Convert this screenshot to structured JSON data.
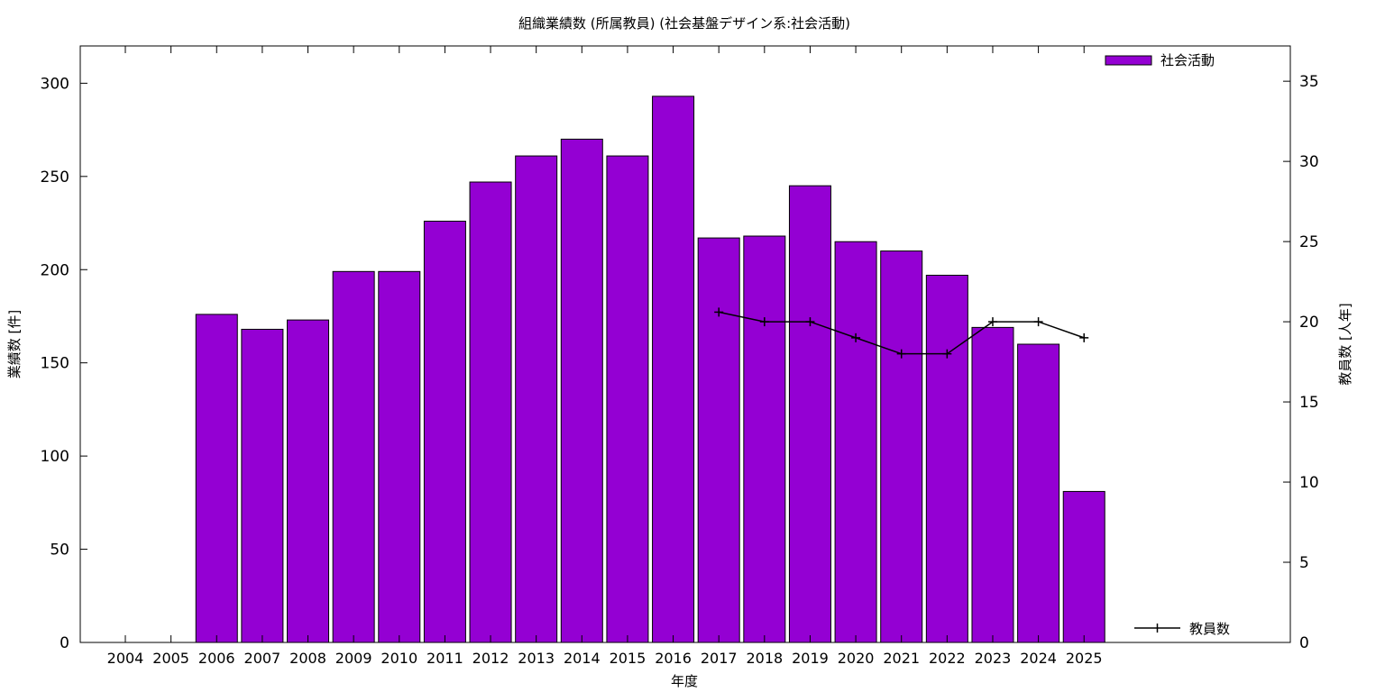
{
  "chart_data": {
    "type": "bar",
    "title": "組織業績数 (所属教員) (社会基盤デザイン系:社会活動)",
    "xlabel": "年度",
    "ylabel": "業績数 [件]",
    "y2label": "教員数 [人年]",
    "categories": [
      "2004",
      "2005",
      "2006",
      "2007",
      "2008",
      "2009",
      "2010",
      "2011",
      "2012",
      "2013",
      "2014",
      "2015",
      "2016",
      "2017",
      "2018",
      "2019",
      "2020",
      "2021",
      "2022",
      "2023",
      "2024",
      "2025"
    ],
    "ylim": [
      0,
      320
    ],
    "yticks": [
      0,
      50,
      100,
      150,
      200,
      250,
      300
    ],
    "y2lim": [
      0,
      37.2
    ],
    "y2ticks": [
      0,
      5,
      10,
      15,
      20,
      25,
      30,
      35
    ],
    "grid": false,
    "series": [
      {
        "name": "社会活動",
        "type": "bar",
        "axis": "y",
        "color": "#9400d3",
        "values": [
          0,
          0,
          176,
          168,
          173,
          199,
          199,
          226,
          247,
          261,
          270,
          261,
          293,
          217,
          218,
          245,
          215,
          210,
          197,
          169,
          160,
          81
        ]
      },
      {
        "name": "教員数",
        "type": "line",
        "axis": "y2",
        "color": "#000000",
        "values": [
          null,
          null,
          null,
          null,
          null,
          null,
          null,
          null,
          null,
          null,
          null,
          null,
          null,
          20.6,
          20,
          20,
          19,
          18,
          18,
          20,
          20,
          19
        ]
      }
    ],
    "legend": [
      "top-right",
      "bottom-right"
    ]
  }
}
